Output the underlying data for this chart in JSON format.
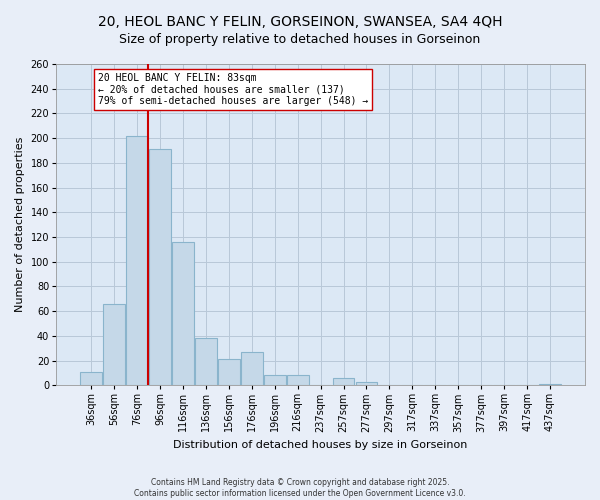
{
  "title": "20, HEOL BANC Y FELIN, GORSEINON, SWANSEA, SA4 4QH",
  "subtitle": "Size of property relative to detached houses in Gorseinon",
  "xlabel": "Distribution of detached houses by size in Gorseinon",
  "ylabel": "Number of detached properties",
  "bar_labels": [
    "36sqm",
    "56sqm",
    "76sqm",
    "96sqm",
    "116sqm",
    "136sqm",
    "156sqm",
    "176sqm",
    "196sqm",
    "216sqm",
    "237sqm",
    "257sqm",
    "277sqm",
    "297sqm",
    "317sqm",
    "337sqm",
    "357sqm",
    "377sqm",
    "397sqm",
    "417sqm",
    "437sqm"
  ],
  "bar_values": [
    11,
    66,
    202,
    191,
    116,
    38,
    21,
    27,
    8,
    8,
    0,
    6,
    3,
    0,
    0,
    0,
    0,
    0,
    0,
    0,
    1
  ],
  "bar_color": "#c5d8e8",
  "bar_edge_color": "#8ab4cc",
  "vline_color": "#cc0000",
  "vline_x": 2.5,
  "annotation_text": "20 HEOL BANC Y FELIN: 83sqm\n← 20% of detached houses are smaller (137)\n79% of semi-detached houses are larger (548) →",
  "annotation_box_facecolor": "#ffffff",
  "annotation_box_edgecolor": "#cc0000",
  "ylim": [
    0,
    260
  ],
  "yticks": [
    0,
    20,
    40,
    60,
    80,
    100,
    120,
    140,
    160,
    180,
    200,
    220,
    240,
    260
  ],
  "footnote1": "Contains HM Land Registry data © Crown copyright and database right 2025.",
  "footnote2": "Contains public sector information licensed under the Open Government Licence v3.0.",
  "bg_color": "#e8eef8",
  "plot_bg_color": "#dce8f5",
  "grid_color": "#b8c8d8",
  "title_fontsize": 10,
  "subtitle_fontsize": 9,
  "axis_label_fontsize": 8,
  "tick_fontsize": 7,
  "annotation_fontsize": 7,
  "footnote_fontsize": 5.5
}
